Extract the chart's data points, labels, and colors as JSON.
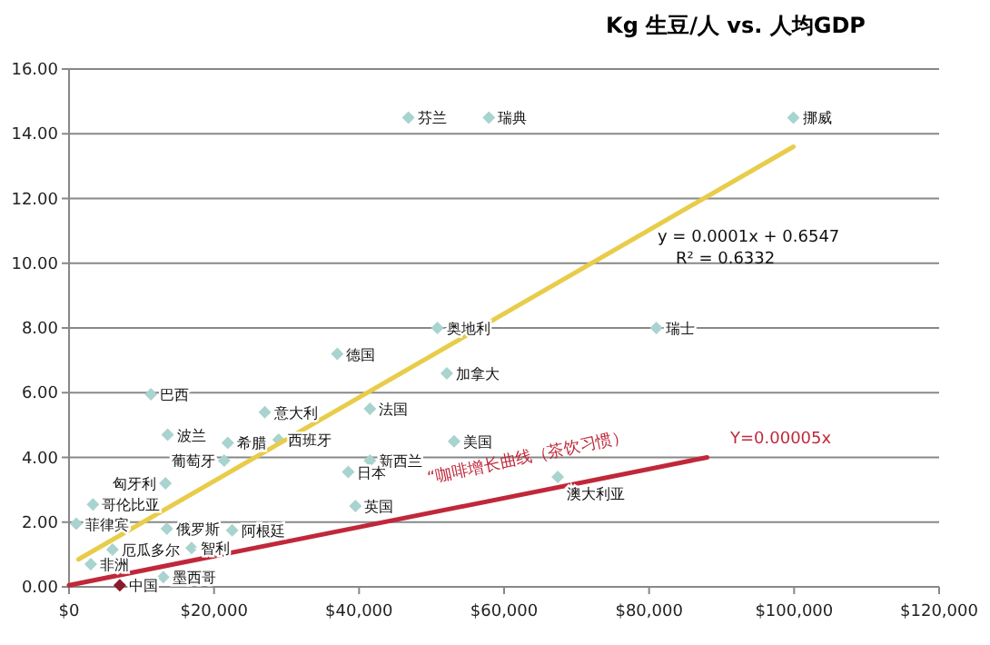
{
  "chart_data": {
    "type": "scatter",
    "title": "Kg 生豆/人 vs. 人均GDP",
    "xlim": [
      0,
      120000
    ],
    "ylim": [
      0,
      16
    ],
    "xticks": [
      {
        "value": 0,
        "label": "$0"
      },
      {
        "value": 20000,
        "label": "$20,000"
      },
      {
        "value": 40000,
        "label": "$40,000"
      },
      {
        "value": 60000,
        "label": "$60,000"
      },
      {
        "value": 80000,
        "label": "$80,000"
      },
      {
        "value": 100000,
        "label": "$100,000"
      },
      {
        "value": 120000,
        "label": "$120,000"
      }
    ],
    "yticks": [
      {
        "value": 0,
        "label": "0.00"
      },
      {
        "value": 2,
        "label": "2.00"
      },
      {
        "value": 4,
        "label": "4.00"
      },
      {
        "value": 6,
        "label": "6.00"
      },
      {
        "value": 8,
        "label": "8.00"
      },
      {
        "value": 10,
        "label": "10.00"
      },
      {
        "value": 12,
        "label": "12.00"
      },
      {
        "value": 14,
        "label": "14.00"
      },
      {
        "value": 16,
        "label": "16.00"
      }
    ],
    "grid": "y",
    "series": [
      {
        "marker": "diamond",
        "color": "#a9d3cf",
        "x": [
          46800,
          57900,
          99900,
          11300,
          13600,
          21900,
          27000,
          28900,
          41500,
          41500,
          38500,
          53100,
          39500,
          13300,
          21400,
          13500,
          1000,
          3300,
          3000,
          6000,
          13000,
          16900,
          22500,
          67400,
          37000,
          52100,
          81000,
          50800
        ],
        "values": [
          14.5,
          14.5,
          14.5,
          5.95,
          4.7,
          4.45,
          5.4,
          4.55,
          5.5,
          3.9,
          3.55,
          4.5,
          2.5,
          3.2,
          3.9,
          1.8,
          1.95,
          2.55,
          0.7,
          1.15,
          0.3,
          1.2,
          1.75,
          3.4,
          7.2,
          6.6,
          8.0,
          8.0
        ]
      },
      {
        "marker": "diamond",
        "color": "#8b1a2a",
        "x": [
          7000
        ],
        "values": [
          0.05
        ]
      },
      {
        "type": "line",
        "marker": "none",
        "line_style": "solid",
        "color": "#e8cc4a",
        "x": [
          1300,
          99900
        ],
        "values": [
          0.85,
          13.6
        ]
      },
      {
        "type": "line",
        "marker": "none",
        "line_style": "solid",
        "color": "#c0283a",
        "x": [
          0,
          88000
        ],
        "values": [
          0.05,
          4.0
        ]
      }
    ],
    "annotations": [
      {
        "text": "芬兰",
        "x": 46800,
        "y": 14.5
      },
      {
        "text": "瑞典",
        "x": 57900,
        "y": 14.5
      },
      {
        "text": "挪威",
        "x": 99900,
        "y": 14.5
      },
      {
        "text": "巴西",
        "x": 11300,
        "y": 5.95
      },
      {
        "text": "波兰",
        "x": 13600,
        "y": 4.7
      },
      {
        "text": "希腊",
        "x": 21900,
        "y": 4.45
      },
      {
        "text": "意大利",
        "x": 27000,
        "y": 5.4
      },
      {
        "text": "西班牙",
        "x": 28900,
        "y": 4.55
      },
      {
        "text": "法国",
        "x": 41500,
        "y": 5.5
      },
      {
        "text": "新西兰",
        "x": 41500,
        "y": 3.9
      },
      {
        "text": "日本",
        "x": 38500,
        "y": 3.55
      },
      {
        "text": "美国",
        "x": 53100,
        "y": 4.5
      },
      {
        "text": "英国",
        "x": 39500,
        "y": 2.5
      },
      {
        "text": "匈牙利",
        "x": 13300,
        "y": 3.2
      },
      {
        "text": "葡萄牙",
        "x": 21400,
        "y": 3.9
      },
      {
        "text": "俄罗斯",
        "x": 13500,
        "y": 1.8
      },
      {
        "text": "菲律宾",
        "x": 1000,
        "y": 1.95
      },
      {
        "text": "哥伦比亚",
        "x": 3300,
        "y": 2.55
      },
      {
        "text": "非洲",
        "x": 3000,
        "y": 0.7
      },
      {
        "text": "厄瓜多尔",
        "x": 6000,
        "y": 1.15
      },
      {
        "text": "墨西哥",
        "x": 13000,
        "y": 0.3
      },
      {
        "text": "智利",
        "x": 16900,
        "y": 1.2
      },
      {
        "text": "阿根廷",
        "x": 22500,
        "y": 1.75
      },
      {
        "text": "澳大利亚",
        "x": 67400,
        "y": 3.4
      },
      {
        "text": "德国",
        "x": 37000,
        "y": 7.2
      },
      {
        "text": "加拿大",
        "x": 52100,
        "y": 6.6
      },
      {
        "text": "瑞士",
        "x": 81000,
        "y": 8.0
      },
      {
        "text": "奥地利",
        "x": 50800,
        "y": 8.0
      },
      {
        "text": "中国",
        "x": 7000,
        "y": 0.05
      },
      "y = 0.0001x + 0.6547",
      "R² = 0.6332",
      "“咖啡增长曲线（茶饮习惯）",
      "Y=0.00005x"
    ]
  }
}
